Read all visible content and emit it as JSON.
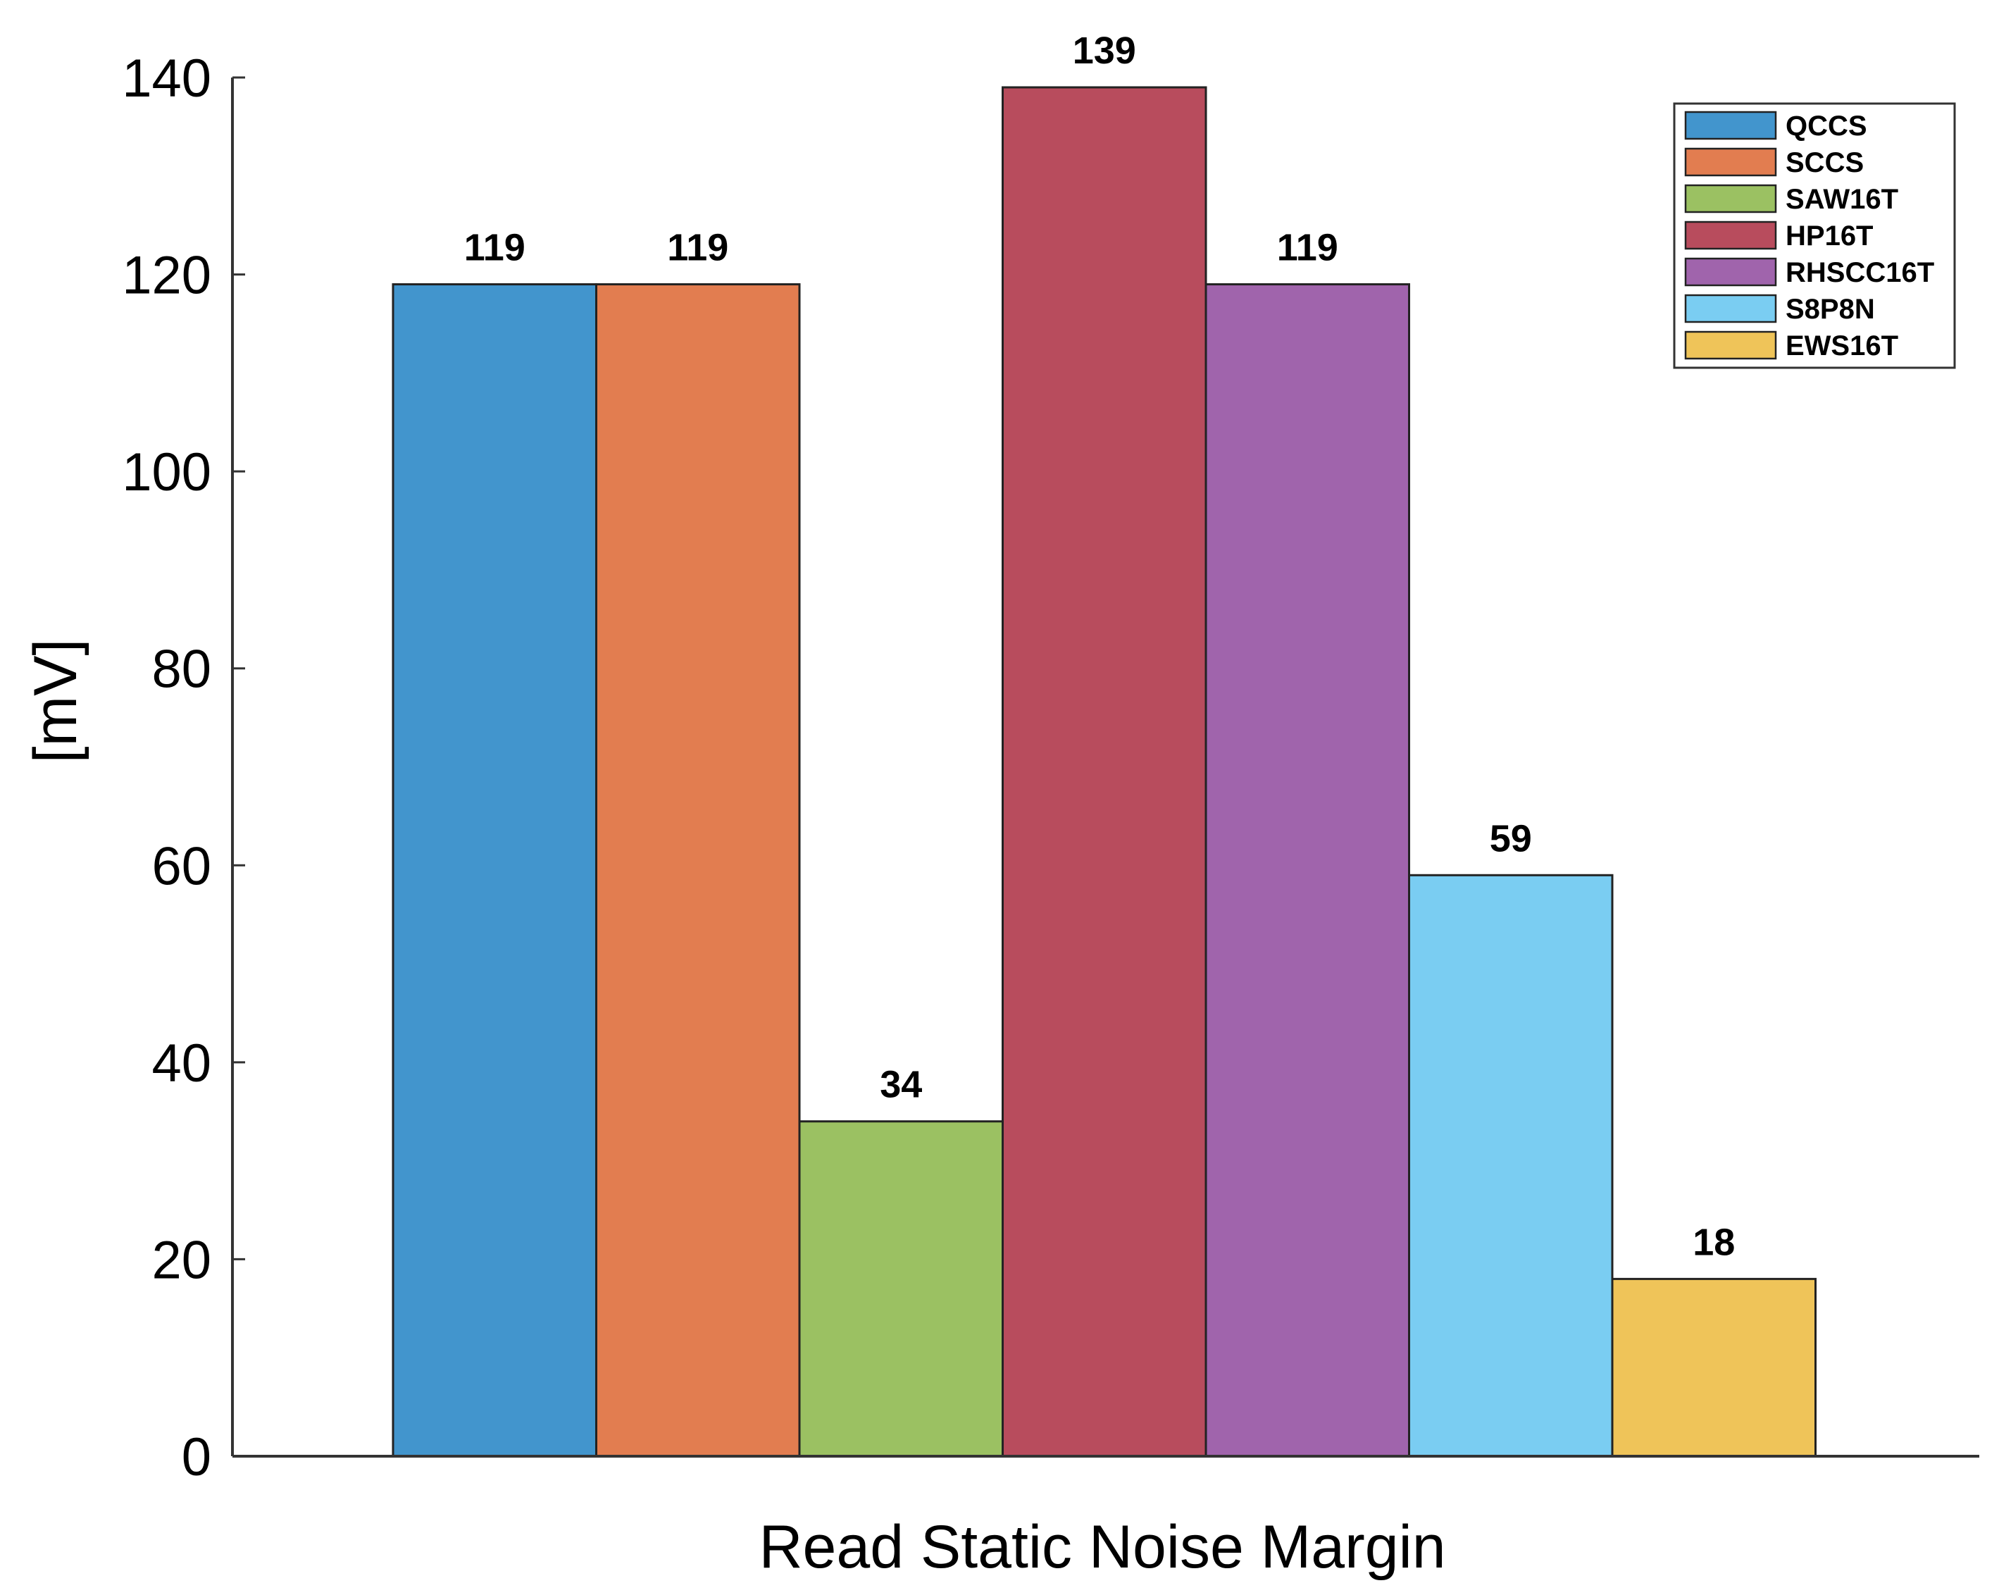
{
  "chart_data": {
    "type": "bar",
    "xlabel": "Read Static Noise Margin",
    "ylabel": "[mV]",
    "ylim": [
      0,
      140
    ],
    "yticks": [
      0,
      20,
      40,
      60,
      80,
      100,
      120,
      140
    ],
    "legend_position": "top-right",
    "grid": false,
    "series": [
      {
        "name": "QCCS",
        "value": 119,
        "label": "119",
        "color": "#4295CD"
      },
      {
        "name": "SCCS",
        "value": 119,
        "label": "119",
        "color": "#E27D50"
      },
      {
        "name": "SAW16T",
        "value": 34,
        "label": "34",
        "color": "#9BC162"
      },
      {
        "name": "HP16T",
        "value": 139,
        "label": "139",
        "color": "#B84C5D"
      },
      {
        "name": "RHSCC16T",
        "value": 119,
        "label": "119",
        "color": "#A064AC"
      },
      {
        "name": "S8P8N",
        "value": 59,
        "label": "59",
        "color": "#7ACDF2"
      },
      {
        "name": "EWS16T",
        "value": 18,
        "label": "18",
        "color": "#EFC459"
      }
    ]
  }
}
